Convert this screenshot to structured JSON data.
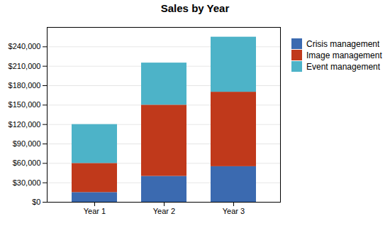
{
  "chart_data": {
    "type": "bar",
    "title": "Sales by Year",
    "stacked": true,
    "categories": [
      "Year 1",
      "Year 2",
      "Year 3"
    ],
    "series": [
      {
        "name": "Crisis management",
        "color": "#3b6ab0",
        "values": [
          15000,
          40000,
          55000
        ]
      },
      {
        "name": "Image management",
        "color": "#c0391b",
        "values": [
          45000,
          110000,
          115000
        ]
      },
      {
        "name": "Event management",
        "color": "#4db3c8",
        "values": [
          60000,
          65000,
          85000
        ]
      }
    ],
    "ylim": [
      0,
      270000
    ],
    "yticks": [
      {
        "value": 0,
        "label": "$0"
      },
      {
        "value": 30000,
        "label": "$30,000"
      },
      {
        "value": 60000,
        "label": "$60,000"
      },
      {
        "value": 90000,
        "label": "$90,000"
      },
      {
        "value": 120000,
        "label": "$120,000"
      },
      {
        "value": 150000,
        "label": "$150,000"
      },
      {
        "value": 180000,
        "label": "$180,000"
      },
      {
        "value": 210000,
        "label": "$210,000"
      },
      {
        "value": 240000,
        "label": "$240,000"
      }
    ],
    "grid": true,
    "legend": "right"
  }
}
